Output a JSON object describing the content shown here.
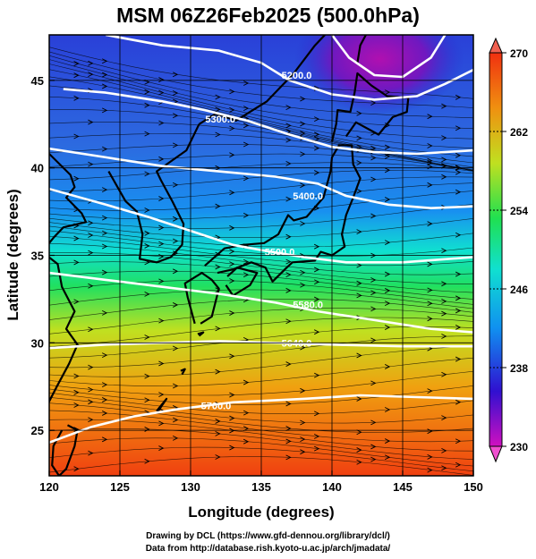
{
  "title": "MSM 06Z26Feb2025 (500.0hPa)",
  "credits": {
    "line1": "Drawing by DCL (https://www.gfd-dennou.org/library/dcl/)",
    "line2": "Data from http://database.rish.kyoto-u.ac.jp/arch/jmadata/"
  },
  "map": {
    "xlabel": "Longitude (degrees)",
    "ylabel": "Latitude  (degrees)",
    "lon_range": [
      120,
      150
    ],
    "lat_range": [
      22.4,
      47.6
    ],
    "lon_ticks": [
      "120",
      "125",
      "130",
      "135",
      "140",
      "145",
      "150"
    ],
    "lat_ticks": [
      "25",
      "30",
      "35",
      "40",
      "45"
    ],
    "grid": true,
    "field": "temperature (shaded)",
    "colorbar": {
      "range": [
        230,
        270
      ],
      "ticks": [
        "270",
        "262",
        "254",
        "246",
        "238",
        "230"
      ],
      "colors": [
        "#c010c0",
        "#2020d0",
        "#1890f0",
        "#10e0d0",
        "#20e060",
        "#c0e020",
        "#f0a010",
        "#f04010"
      ]
    },
    "contours": [
      {
        "label": "5700.0",
        "points": [
          [
            120,
            24.3
          ],
          [
            123,
            25.2
          ],
          [
            126,
            25.8
          ],
          [
            129,
            26.2
          ],
          [
            133,
            26.6
          ],
          [
            138,
            26.8
          ],
          [
            142,
            27.0
          ],
          [
            146,
            26.9
          ],
          [
            150,
            26.8
          ]
        ]
      },
      {
        "label": "5640.0",
        "points": [
          [
            120,
            29.7
          ],
          [
            124,
            29.9
          ],
          [
            128,
            30.0
          ],
          [
            132,
            30.1
          ],
          [
            136,
            30.0
          ],
          [
            140,
            29.9
          ],
          [
            145,
            29.8
          ],
          [
            150,
            29.8
          ]
        ]
      },
      {
        "label": "5580.0",
        "points": [
          [
            120,
            34.0
          ],
          [
            124,
            33.6
          ],
          [
            128,
            33.2
          ],
          [
            132,
            32.8
          ],
          [
            136,
            32.3
          ],
          [
            139,
            31.8
          ],
          [
            143,
            31.3
          ],
          [
            147,
            30.8
          ],
          [
            150,
            30.6
          ]
        ]
      },
      {
        "label": "5500.0",
        "points": [
          [
            120,
            38.8
          ],
          [
            124,
            37.9
          ],
          [
            127,
            37.2
          ],
          [
            130,
            36.4
          ],
          [
            133,
            35.6
          ],
          [
            135,
            35.3
          ],
          [
            138,
            34.9
          ],
          [
            141,
            34.6
          ],
          [
            145,
            34.6
          ],
          [
            150,
            34.9
          ]
        ]
      },
      {
        "label": "5400.0",
        "points": [
          [
            120,
            41.1
          ],
          [
            124,
            40.6
          ],
          [
            128,
            40.1
          ],
          [
            132,
            39.8
          ],
          [
            136,
            39.5
          ],
          [
            139,
            39.1
          ],
          [
            141,
            38.4
          ],
          [
            144,
            37.9
          ],
          [
            147,
            37.7
          ],
          [
            150,
            37.8
          ]
        ]
      },
      {
        "label": "5300.0",
        "points": [
          [
            121,
            44.5
          ],
          [
            124,
            44.3
          ],
          [
            128,
            43.8
          ],
          [
            131,
            43.3
          ],
          [
            134,
            42.7
          ],
          [
            137,
            41.9
          ],
          [
            140,
            41.2
          ],
          [
            143,
            40.9
          ],
          [
            146,
            40.8
          ],
          [
            150,
            41.0
          ]
        ]
      },
      {
        "label": "5200.0",
        "points": [
          [
            124,
            47.6
          ],
          [
            128,
            47.0
          ],
          [
            132,
            46.7
          ],
          [
            135,
            46.0
          ],
          [
            137,
            45.0
          ],
          [
            140,
            44.2
          ],
          [
            143,
            43.9
          ],
          [
            146,
            44.1
          ],
          [
            148,
            44.8
          ],
          [
            150,
            45.6
          ]
        ]
      },
      {
        "label": "",
        "points": [
          [
            140,
            47.6
          ],
          [
            141.2,
            46.3
          ],
          [
            143,
            45.3
          ],
          [
            145,
            45.2
          ],
          [
            147,
            46.3
          ],
          [
            148,
            47.6
          ]
        ]
      }
    ],
    "contour_labels": [
      {
        "text": "5700.0",
        "lon": 131.8,
        "lat": 26.4
      },
      {
        "text": "5640.0",
        "lon": 137.5,
        "lat": 30.0
      },
      {
        "text": "5580.0",
        "lon": 138.3,
        "lat": 32.2
      },
      {
        "text": "5500.0",
        "lon": 136.3,
        "lat": 35.2
      },
      {
        "text": "5400.0",
        "lon": 138.3,
        "lat": 38.4
      },
      {
        "text": "5300.0",
        "lon": 132.1,
        "lat": 42.8
      },
      {
        "text": "5200.0",
        "lon": 137.5,
        "lat": 45.3
      }
    ]
  }
}
